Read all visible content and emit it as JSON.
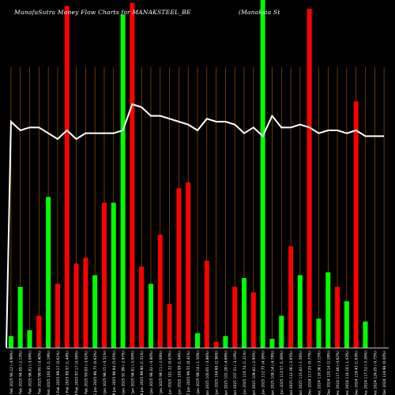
{
  "title": "MunafaSutra  Money Flow  Charts for MANAKSTEEL_BE",
  "subtitle": "(Manaksia  St",
  "colors": {
    "background": "#000000",
    "up": "#00ff00",
    "down": "#ff0000",
    "line": "#ffffff",
    "grid": "#b35c00",
    "axis": "#ffffff"
  },
  "chart_data": {
    "type": "bar",
    "categories": [
      "13 Feb 2025",
      "12 Feb 2025",
      "11 Feb 2025",
      "10 Feb 2025",
      "07 Feb 2025",
      "06 Feb 2025",
      "05 Feb 2025",
      "04 Feb 2025",
      "03 Feb 2025",
      "31 Jan 2025",
      "30 Jan 2025",
      "29 Jan 2025",
      "28 Jan 2025",
      "27 Jan 2025",
      "24 Jan 2025",
      "23 Jan 2025",
      "22 Jan 2025",
      "21 Jan 2025",
      "20 Jan 2025",
      "17 Jan 2025",
      "16 Jan 2025",
      "15 Jan 2025",
      "14 Jan 2025",
      "13 Jan 2025",
      "10 Jan 2025",
      "09 Jan 2025",
      "08 Jan 2025",
      "07 Jan 2025",
      "06 Jan 2025",
      "03 Jan 2025",
      "02 Jan 2025",
      "01 Jan 2025",
      "31 Dec 2024",
      "30 Dec 2024",
      "27 Dec 2024",
      "26 Dec 2024",
      "24 Dec 2024",
      "23 Dec 2024",
      "20 Dec 2024",
      "19 Dec 2024",
      "18 Dec 2024"
    ],
    "tick_labels": [
      "13 Feb 2025 90.12 (-4.99%)",
      "12 Feb 2025 94.85 (-2.13%)",
      "11 Feb 2025 96.91 (-3.04%)",
      "10 Feb 2025 99.95 (-0.40%)",
      "07 Feb 2025 100.35 (1.19%)",
      "06 Feb 2025 99.17 (0.61%)",
      "05 Feb 2025 98.57 (1.44%)",
      "04 Feb 2025 97.17 (3.56%)",
      "03 Feb 2025 93.83 (-3.02%)",
      "31 Jan 2025 96.75 (0.62%)",
      "30 Jan 2025 96.15 (-0.51%)",
      "29 Jan 2025 96.64 (5.05%)",
      "28 Jan 2025 91.99 (-2.97%)",
      "27 Jan 2025 94.81 (-5.00%)",
      "24 Jan 2025 99.80 (1.51%)",
      "23 Jan 2025 98.32 (-0.80%)",
      "22 Jan 2025 99.11 (-2.08%)",
      "21 Jan 2025 101.22 (0.63%)",
      "20 Jan 2025 100.59 (1.04%)",
      "17 Jan 2025 99.55 (0.41%)",
      "16 Jan 2025 99.14 (-1.50%)",
      "15 Jan 2025 100.65 (-3.86%)",
      "14 Jan 2025 104.69 (2.36%)",
      "13 Jan 2025 102.28 (-4.69%)",
      "10 Jan 2025 107.31 (-3.10%)",
      "09 Jan 2025 110.74 (1.21%)",
      "08 Jan 2025 109.42 (-2.95%)",
      "07 Jan 2025 112.75 (4.26%)",
      "06 Jan 2025 108.14 (-4.78%)",
      "03 Jan 2025 113.57 (1.08%)",
      "02 Jan 2025 112.36 (-2.65%)",
      "01 Jan 2025 115.42 (-1.56%)",
      "31 Dec 2024 117.25 (0.77%)",
      "30 Dec 2024 116.36 (-3.15%)",
      "27 Dec 2024 120.14 (2.28%)",
      "26 Dec 2024 117.46 (-0.62%)",
      "24 Dec 2024 118.20 (-1.03%)",
      "23 Dec 2024 119.43 (1.63%)",
      "20 Dec 2024 117.52 (-5.26%)",
      "19 Dec 2024 124.05 (-0.75%)",
      "18 Dec 2024 124.98 (0.00%)"
    ],
    "values": [
      4,
      21,
      6,
      11,
      52,
      22,
      118,
      29,
      31,
      25,
      50,
      50,
      115,
      119,
      28,
      22,
      39,
      15,
      55,
      57,
      5,
      30,
      2,
      4,
      21,
      24,
      19,
      120,
      3,
      11,
      35,
      25,
      117,
      10,
      26,
      21,
      16,
      85,
      9,
      0,
      0
    ],
    "directions": [
      "up",
      "up",
      "up",
      "down",
      "up",
      "down",
      "down",
      "down",
      "down",
      "up",
      "down",
      "up",
      "up",
      "down",
      "down",
      "up",
      "down",
      "down",
      "down",
      "down",
      "up",
      "down",
      "down",
      "up",
      "down",
      "up",
      "down",
      "up",
      "up",
      "up",
      "down",
      "up",
      "down",
      "up",
      "up",
      "down",
      "up",
      "down",
      "up",
      "up",
      "up"
    ],
    "line_values": [
      78,
      75,
      76,
      76,
      74,
      72,
      75,
      72,
      74,
      74,
      74,
      74,
      75,
      84,
      83,
      80,
      80,
      79,
      78,
      77,
      75,
      79,
      78,
      78,
      77,
      74,
      76,
      73,
      80,
      76,
      76,
      77,
      76,
      74,
      75,
      75,
      74,
      75,
      73,
      73,
      73
    ],
    "ylim": [
      0,
      120
    ],
    "xlabel": "",
    "ylabel": ""
  }
}
